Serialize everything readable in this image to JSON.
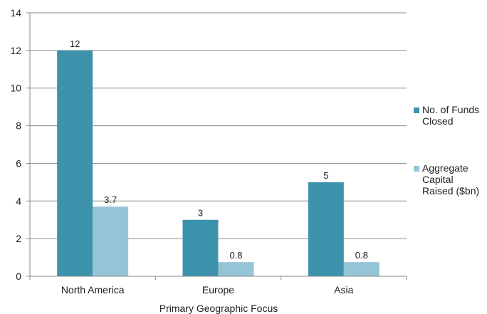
{
  "chart_data": {
    "type": "bar",
    "categories": [
      "North America",
      "Europe",
      "Asia"
    ],
    "series": [
      {
        "name": "No. of Funds Closed",
        "values": [
          12,
          3,
          5
        ],
        "labels": [
          "12",
          "3",
          "5"
        ],
        "color": "#3d93ab"
      },
      {
        "name": "Aggregate Capital Raised ($bn)",
        "values": [
          3.7,
          0.75,
          0.75
        ],
        "labels": [
          "3.7",
          "0.8",
          "0.8"
        ],
        "color": "#94c4d6"
      }
    ],
    "title": "",
    "xlabel": "Primary Geographic Focus",
    "ylabel": "",
    "ylim": [
      0,
      14
    ],
    "yticks": [
      0,
      2,
      4,
      6,
      8,
      10,
      12,
      14
    ],
    "grid": true,
    "legend_position": "right"
  }
}
